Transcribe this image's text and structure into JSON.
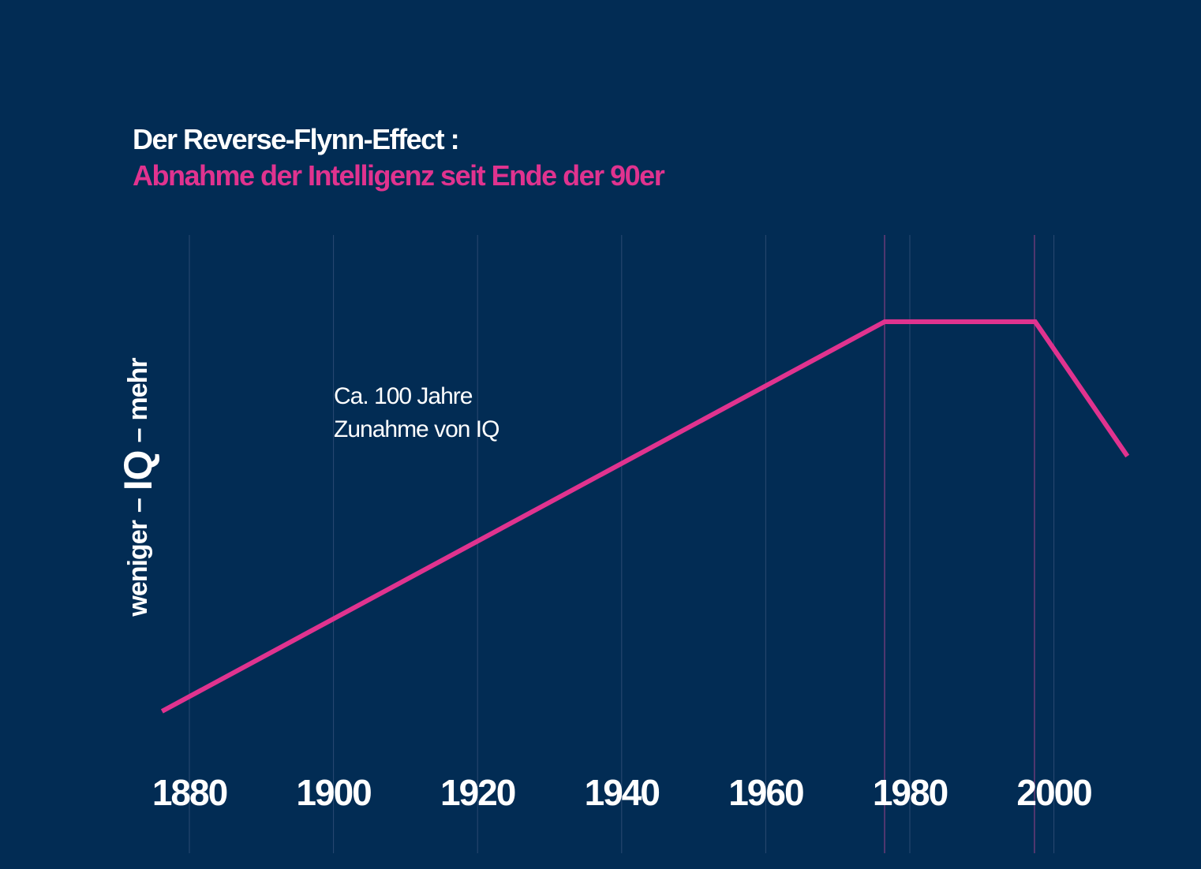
{
  "chart_data": {
    "type": "line",
    "title": "Der Reverse-Flynn-Effect :",
    "subtitle": "Abnahme der Intelligenz seit Ende der 90er",
    "ylabel": {
      "low": "weniger",
      "dash1": "–",
      "main": "IQ",
      "dash2": "–",
      "high": "mehr"
    },
    "xlabel": "",
    "x_ticks": [
      1880,
      1900,
      1920,
      1940,
      1960,
      1980,
      2000
    ],
    "xlim": [
      1876,
      2011
    ],
    "ylim": [
      0,
      100
    ],
    "y_units": "relative IQ level (unlabeled)",
    "grid": "vertical",
    "highlight_years": [
      1976.5,
      1997.3
    ],
    "series": [
      {
        "name": "IQ",
        "x": [
          1876.2,
          1976.5,
          1997.4,
          2010.2
        ],
        "y": [
          0,
          100,
          100,
          65.5
        ],
        "color": "#e0338f"
      }
    ],
    "annotation": {
      "line1": "Ca. 100 Jahre",
      "line2": "Zunahme von IQ"
    }
  },
  "colors": {
    "background": "#022c54",
    "accent": "#e0338f",
    "grid": "#2b4a72",
    "highlight_grid": "#6a3c78"
  }
}
